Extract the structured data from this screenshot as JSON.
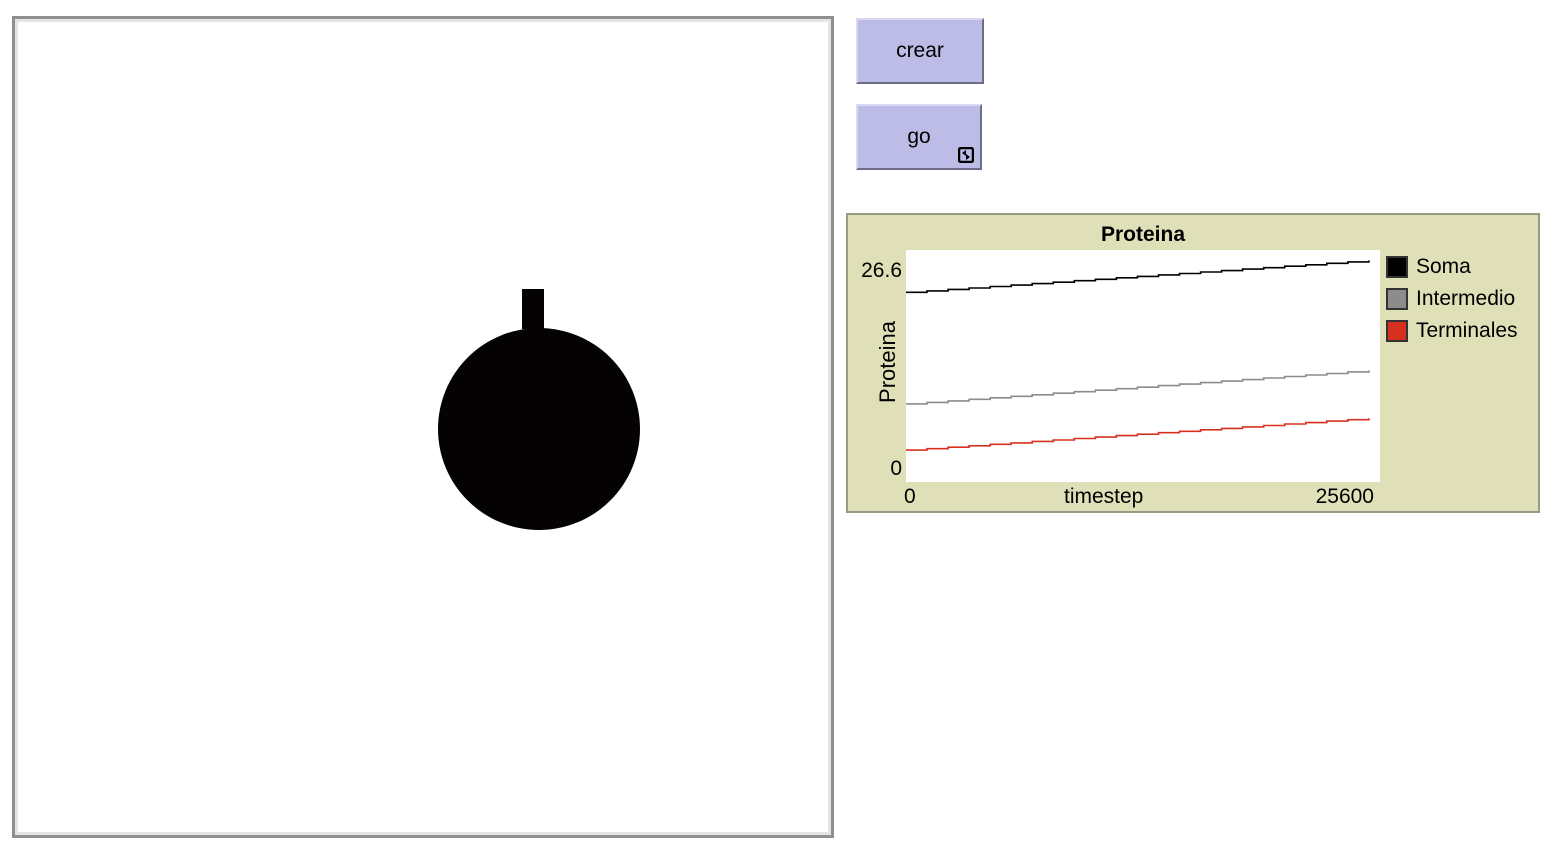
{
  "buttons": {
    "crear_label": "crear",
    "go_label": "go"
  },
  "plot": {
    "title": "Proteina",
    "ylabel": "Proteina",
    "xlabel": "timestep",
    "ymin_label": "0",
    "ymax_label": "26.6",
    "xmin_label": "0",
    "xmax_label": "25600"
  },
  "chart_data": {
    "type": "line",
    "title": "Proteina",
    "xlabel": "timestep",
    "ylabel": "Proteina",
    "xlim": [
      0,
      25600
    ],
    "ylim": [
      0,
      26.6
    ],
    "legend": "right",
    "series": [
      {
        "name": "Soma",
        "color": "#000000",
        "x": [
          0,
          25000
        ],
        "values": [
          23.8,
          27.8
        ]
      },
      {
        "name": "Intermedio",
        "color": "#8c8c8c",
        "x": [
          0,
          25000
        ],
        "values": [
          9.8,
          14.0
        ]
      },
      {
        "name": "Terminales",
        "color": "#d7301f",
        "x": [
          0,
          25000
        ],
        "values": [
          4.0,
          8.0
        ]
      }
    ]
  }
}
